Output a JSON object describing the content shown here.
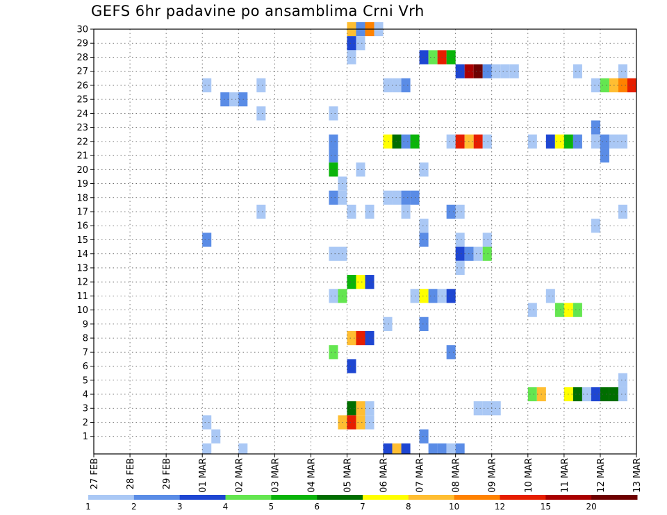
{
  "chart_data": {
    "type": "heatmap",
    "title": "GEFS 6hr padavine po ansamblima Crni Vrh",
    "xlabel": "",
    "ylabel": "",
    "x_ticks": [
      "27 FEB",
      "28 FEB",
      "29 FEB",
      "01 MAR",
      "02 MAR",
      "03 MAR",
      "04 MAR",
      "05 MAR",
      "06 MAR",
      "07 MAR",
      "08 MAR",
      "09 MAR",
      "10 MAR",
      "11 MAR",
      "12 MAR",
      "13 MAR"
    ],
    "y_ticks": [
      1,
      2,
      3,
      4,
      5,
      6,
      7,
      8,
      9,
      10,
      11,
      12,
      13,
      14,
      15,
      16,
      17,
      18,
      19,
      20,
      21,
      22,
      23,
      24,
      25,
      26,
      27,
      28,
      29,
      30
    ],
    "x_step": "6 hours",
    "y_range": [
      0,
      30
    ],
    "grid": true,
    "colorbar": {
      "placement": "bottom",
      "labels": [
        "1",
        "2",
        "3",
        "4",
        "5",
        "6",
        "7",
        "8",
        "10",
        "12",
        "15",
        "20"
      ],
      "colors": [
        "#aac8f5",
        "#5a8ce6",
        "#1e46d2",
        "#64e650",
        "#0ab40a",
        "#006e00",
        "#ffff00",
        "#ffbe32",
        "#ff8200",
        "#e61e00",
        "#aa0000",
        "#6e0000"
      ]
    },
    "cells": [
      {
        "member": 30,
        "day": "05 MAR",
        "hour": 0,
        "level": 8
      },
      {
        "member": 30,
        "day": "05 MAR",
        "hour": 6,
        "level": 2
      },
      {
        "member": 30,
        "day": "05 MAR",
        "hour": 12,
        "level": 9
      },
      {
        "member": 30,
        "day": "05 MAR",
        "hour": 18,
        "level": 1
      },
      {
        "member": 29,
        "day": "05 MAR",
        "hour": 0,
        "level": 3
      },
      {
        "member": 29,
        "day": "05 MAR",
        "hour": 6,
        "level": 1
      },
      {
        "member": 28,
        "day": "05 MAR",
        "hour": 0,
        "level": 1
      },
      {
        "member": 28,
        "day": "07 MAR",
        "hour": 0,
        "level": 3
      },
      {
        "member": 28,
        "day": "07 MAR",
        "hour": 6,
        "level": 4
      },
      {
        "member": 28,
        "day": "07 MAR",
        "hour": 12,
        "level": 10
      },
      {
        "member": 28,
        "day": "07 MAR",
        "hour": 18,
        "level": 5
      },
      {
        "member": 27,
        "day": "08 MAR",
        "hour": 0,
        "level": 3
      },
      {
        "member": 27,
        "day": "08 MAR",
        "hour": 6,
        "level": 11
      },
      {
        "member": 27,
        "day": "08 MAR",
        "hour": 12,
        "level": 12
      },
      {
        "member": 27,
        "day": "08 MAR",
        "hour": 18,
        "level": 2
      },
      {
        "member": 27,
        "day": "09 MAR",
        "hour": 0,
        "level": 1
      },
      {
        "member": 27,
        "day": "09 MAR",
        "hour": 6,
        "level": 1
      },
      {
        "member": 27,
        "day": "09 MAR",
        "hour": 12,
        "level": 1
      },
      {
        "member": 27,
        "day": "11 MAR",
        "hour": 6,
        "level": 1
      },
      {
        "member": 27,
        "day": "12 MAR",
        "hour": 12,
        "level": 1
      },
      {
        "member": 26,
        "day": "01 MAR",
        "hour": 0,
        "level": 1
      },
      {
        "member": 26,
        "day": "02 MAR",
        "hour": 12,
        "level": 1
      },
      {
        "member": 26,
        "day": "06 MAR",
        "hour": 0,
        "level": 1
      },
      {
        "member": 26,
        "day": "06 MAR",
        "hour": 6,
        "level": 1
      },
      {
        "member": 26,
        "day": "06 MAR",
        "hour": 12,
        "level": 2
      },
      {
        "member": 26,
        "day": "11 MAR",
        "hour": 18,
        "level": 1
      },
      {
        "member": 26,
        "day": "12 MAR",
        "hour": 0,
        "level": 4
      },
      {
        "member": 26,
        "day": "12 MAR",
        "hour": 6,
        "level": 8
      },
      {
        "member": 26,
        "day": "12 MAR",
        "hour": 12,
        "level": 9
      },
      {
        "member": 26,
        "day": "12 MAR",
        "hour": 18,
        "level": 10
      },
      {
        "member": 25,
        "day": "01 MAR",
        "hour": 12,
        "level": 2
      },
      {
        "member": 25,
        "day": "01 MAR",
        "hour": 18,
        "level": 1
      },
      {
        "member": 25,
        "day": "02 MAR",
        "hour": 0,
        "level": 2
      },
      {
        "member": 24,
        "day": "02 MAR",
        "hour": 12,
        "level": 1
      },
      {
        "member": 24,
        "day": "04 MAR",
        "hour": 12,
        "level": 1
      },
      {
        "member": 23,
        "day": "11 MAR",
        "hour": 18,
        "level": 2
      },
      {
        "member": 22,
        "day": "04 MAR",
        "hour": 12,
        "level": 2
      },
      {
        "member": 22,
        "day": "06 MAR",
        "hour": 0,
        "level": 7
      },
      {
        "member": 22,
        "day": "06 MAR",
        "hour": 6,
        "level": 6
      },
      {
        "member": 22,
        "day": "06 MAR",
        "hour": 12,
        "level": 2
      },
      {
        "member": 22,
        "day": "06 MAR",
        "hour": 18,
        "level": 5
      },
      {
        "member": 22,
        "day": "07 MAR",
        "hour": 18,
        "level": 1
      },
      {
        "member": 22,
        "day": "08 MAR",
        "hour": 0,
        "level": 10
      },
      {
        "member": 22,
        "day": "08 MAR",
        "hour": 6,
        "level": 8
      },
      {
        "member": 22,
        "day": "08 MAR",
        "hour": 12,
        "level": 10
      },
      {
        "member": 22,
        "day": "08 MAR",
        "hour": 18,
        "level": 1
      },
      {
        "member": 22,
        "day": "10 MAR",
        "hour": 0,
        "level": 1
      },
      {
        "member": 22,
        "day": "10 MAR",
        "hour": 12,
        "level": 3
      },
      {
        "member": 22,
        "day": "10 MAR",
        "hour": 18,
        "level": 7
      },
      {
        "member": 22,
        "day": "11 MAR",
        "hour": 0,
        "level": 5
      },
      {
        "member": 22,
        "day": "11 MAR",
        "hour": 6,
        "level": 2
      },
      {
        "member": 22,
        "day": "11 MAR",
        "hour": 18,
        "level": 1
      },
      {
        "member": 22,
        "day": "12 MAR",
        "hour": 0,
        "level": 2
      },
      {
        "member": 22,
        "day": "12 MAR",
        "hour": 6,
        "level": 1
      },
      {
        "member": 22,
        "day": "12 MAR",
        "hour": 12,
        "level": 1
      },
      {
        "member": 21,
        "day": "04 MAR",
        "hour": 12,
        "level": 2
      },
      {
        "member": 21,
        "day": "12 MAR",
        "hour": 0,
        "level": 2
      },
      {
        "member": 20,
        "day": "04 MAR",
        "hour": 12,
        "level": 5
      },
      {
        "member": 20,
        "day": "05 MAR",
        "hour": 6,
        "level": 1
      },
      {
        "member": 20,
        "day": "07 MAR",
        "hour": 0,
        "level": 1
      },
      {
        "member": 19,
        "day": "04 MAR",
        "hour": 18,
        "level": 1
      },
      {
        "member": 18,
        "day": "04 MAR",
        "hour": 12,
        "level": 2
      },
      {
        "member": 18,
        "day": "04 MAR",
        "hour": 18,
        "level": 1
      },
      {
        "member": 18,
        "day": "06 MAR",
        "hour": 0,
        "level": 1
      },
      {
        "member": 18,
        "day": "06 MAR",
        "hour": 6,
        "level": 1
      },
      {
        "member": 18,
        "day": "06 MAR",
        "hour": 12,
        "level": 2
      },
      {
        "member": 18,
        "day": "06 MAR",
        "hour": 18,
        "level": 2
      },
      {
        "member": 17,
        "day": "02 MAR",
        "hour": 12,
        "level": 1
      },
      {
        "member": 17,
        "day": "05 MAR",
        "hour": 0,
        "level": 1
      },
      {
        "member": 17,
        "day": "05 MAR",
        "hour": 12,
        "level": 1
      },
      {
        "member": 17,
        "day": "06 MAR",
        "hour": 12,
        "level": 1
      },
      {
        "member": 17,
        "day": "07 MAR",
        "hour": 18,
        "level": 2
      },
      {
        "member": 17,
        "day": "08 MAR",
        "hour": 0,
        "level": 1
      },
      {
        "member": 17,
        "day": "12 MAR",
        "hour": 12,
        "level": 1
      },
      {
        "member": 16,
        "day": "07 MAR",
        "hour": 0,
        "level": 1
      },
      {
        "member": 16,
        "day": "11 MAR",
        "hour": 18,
        "level": 1
      },
      {
        "member": 15,
        "day": "01 MAR",
        "hour": 0,
        "level": 2
      },
      {
        "member": 15,
        "day": "07 MAR",
        "hour": 0,
        "level": 2
      },
      {
        "member": 15,
        "day": "08 MAR",
        "hour": 0,
        "level": 1
      },
      {
        "member": 15,
        "day": "08 MAR",
        "hour": 18,
        "level": 1
      },
      {
        "member": 14,
        "day": "04 MAR",
        "hour": 12,
        "level": 1
      },
      {
        "member": 14,
        "day": "04 MAR",
        "hour": 18,
        "level": 1
      },
      {
        "member": 14,
        "day": "08 MAR",
        "hour": 0,
        "level": 3
      },
      {
        "member": 14,
        "day": "08 MAR",
        "hour": 6,
        "level": 2
      },
      {
        "member": 14,
        "day": "08 MAR",
        "hour": 12,
        "level": 1
      },
      {
        "member": 14,
        "day": "08 MAR",
        "hour": 18,
        "level": 4
      },
      {
        "member": 13,
        "day": "08 MAR",
        "hour": 0,
        "level": 1
      },
      {
        "member": 12,
        "day": "05 MAR",
        "hour": 0,
        "level": 5
      },
      {
        "member": 12,
        "day": "05 MAR",
        "hour": 6,
        "level": 7
      },
      {
        "member": 12,
        "day": "05 MAR",
        "hour": 12,
        "level": 3
      },
      {
        "member": 11,
        "day": "04 MAR",
        "hour": 12,
        "level": 1
      },
      {
        "member": 11,
        "day": "04 MAR",
        "hour": 18,
        "level": 4
      },
      {
        "member": 11,
        "day": "06 MAR",
        "hour": 18,
        "level": 1
      },
      {
        "member": 11,
        "day": "07 MAR",
        "hour": 0,
        "level": 7
      },
      {
        "member": 11,
        "day": "07 MAR",
        "hour": 6,
        "level": 2
      },
      {
        "member": 11,
        "day": "07 MAR",
        "hour": 12,
        "level": 1
      },
      {
        "member": 11,
        "day": "07 MAR",
        "hour": 18,
        "level": 3
      },
      {
        "member": 11,
        "day": "10 MAR",
        "hour": 12,
        "level": 1
      },
      {
        "member": 10,
        "day": "10 MAR",
        "hour": 0,
        "level": 1
      },
      {
        "member": 10,
        "day": "10 MAR",
        "hour": 18,
        "level": 4
      },
      {
        "member": 10,
        "day": "11 MAR",
        "hour": 0,
        "level": 7
      },
      {
        "member": 10,
        "day": "11 MAR",
        "hour": 6,
        "level": 4
      },
      {
        "member": 9,
        "day": "06 MAR",
        "hour": 0,
        "level": 1
      },
      {
        "member": 9,
        "day": "07 MAR",
        "hour": 0,
        "level": 2
      },
      {
        "member": 8,
        "day": "05 MAR",
        "hour": 0,
        "level": 8
      },
      {
        "member": 8,
        "day": "05 MAR",
        "hour": 6,
        "level": 10
      },
      {
        "member": 8,
        "day": "05 MAR",
        "hour": 12,
        "level": 3
      },
      {
        "member": 7,
        "day": "04 MAR",
        "hour": 12,
        "level": 4
      },
      {
        "member": 7,
        "day": "07 MAR",
        "hour": 18,
        "level": 2
      },
      {
        "member": 6,
        "day": "05 MAR",
        "hour": 0,
        "level": 3
      },
      {
        "member": 5,
        "day": "12 MAR",
        "hour": 12,
        "level": 1
      },
      {
        "member": 4,
        "day": "10 MAR",
        "hour": 0,
        "level": 4
      },
      {
        "member": 4,
        "day": "10 MAR",
        "hour": 6,
        "level": 8
      },
      {
        "member": 4,
        "day": "11 MAR",
        "hour": 0,
        "level": 7
      },
      {
        "member": 4,
        "day": "11 MAR",
        "hour": 6,
        "level": 6
      },
      {
        "member": 4,
        "day": "11 MAR",
        "hour": 12,
        "level": 1
      },
      {
        "member": 4,
        "day": "11 MAR",
        "hour": 18,
        "level": 3
      },
      {
        "member": 4,
        "day": "12 MAR",
        "hour": 0,
        "level": 6
      },
      {
        "member": 4,
        "day": "12 MAR",
        "hour": 6,
        "level": 6
      },
      {
        "member": 4,
        "day": "12 MAR",
        "hour": 12,
        "level": 1
      },
      {
        "member": 3,
        "day": "05 MAR",
        "hour": 0,
        "level": 6
      },
      {
        "member": 3,
        "day": "05 MAR",
        "hour": 6,
        "level": 8
      },
      {
        "member": 3,
        "day": "05 MAR",
        "hour": 12,
        "level": 1
      },
      {
        "member": 3,
        "day": "08 MAR",
        "hour": 12,
        "level": 1
      },
      {
        "member": 3,
        "day": "08 MAR",
        "hour": 18,
        "level": 1
      },
      {
        "member": 3,
        "day": "09 MAR",
        "hour": 0,
        "level": 1
      },
      {
        "member": 2,
        "day": "01 MAR",
        "hour": 0,
        "level": 1
      },
      {
        "member": 2,
        "day": "04 MAR",
        "hour": 18,
        "level": 8
      },
      {
        "member": 2,
        "day": "05 MAR",
        "hour": 0,
        "level": 10
      },
      {
        "member": 2,
        "day": "05 MAR",
        "hour": 6,
        "level": 8
      },
      {
        "member": 2,
        "day": "05 MAR",
        "hour": 12,
        "level": 1
      },
      {
        "member": 1,
        "day": "01 MAR",
        "hour": 6,
        "level": 1
      },
      {
        "member": 1,
        "day": "07 MAR",
        "hour": 0,
        "level": 2
      },
      {
        "member": 0,
        "day": "01 MAR",
        "hour": 0,
        "level": 1
      },
      {
        "member": 0,
        "day": "02 MAR",
        "hour": 0,
        "level": 1
      },
      {
        "member": 0,
        "day": "06 MAR",
        "hour": 0,
        "level": 3
      },
      {
        "member": 0,
        "day": "06 MAR",
        "hour": 6,
        "level": 8
      },
      {
        "member": 0,
        "day": "06 MAR",
        "hour": 12,
        "level": 3
      },
      {
        "member": 0,
        "day": "07 MAR",
        "hour": 6,
        "level": 2
      },
      {
        "member": 0,
        "day": "07 MAR",
        "hour": 12,
        "level": 2
      },
      {
        "member": 0,
        "day": "07 MAR",
        "hour": 18,
        "level": 1
      },
      {
        "member": 0,
        "day": "08 MAR",
        "hour": 0,
        "level": 2
      }
    ]
  }
}
